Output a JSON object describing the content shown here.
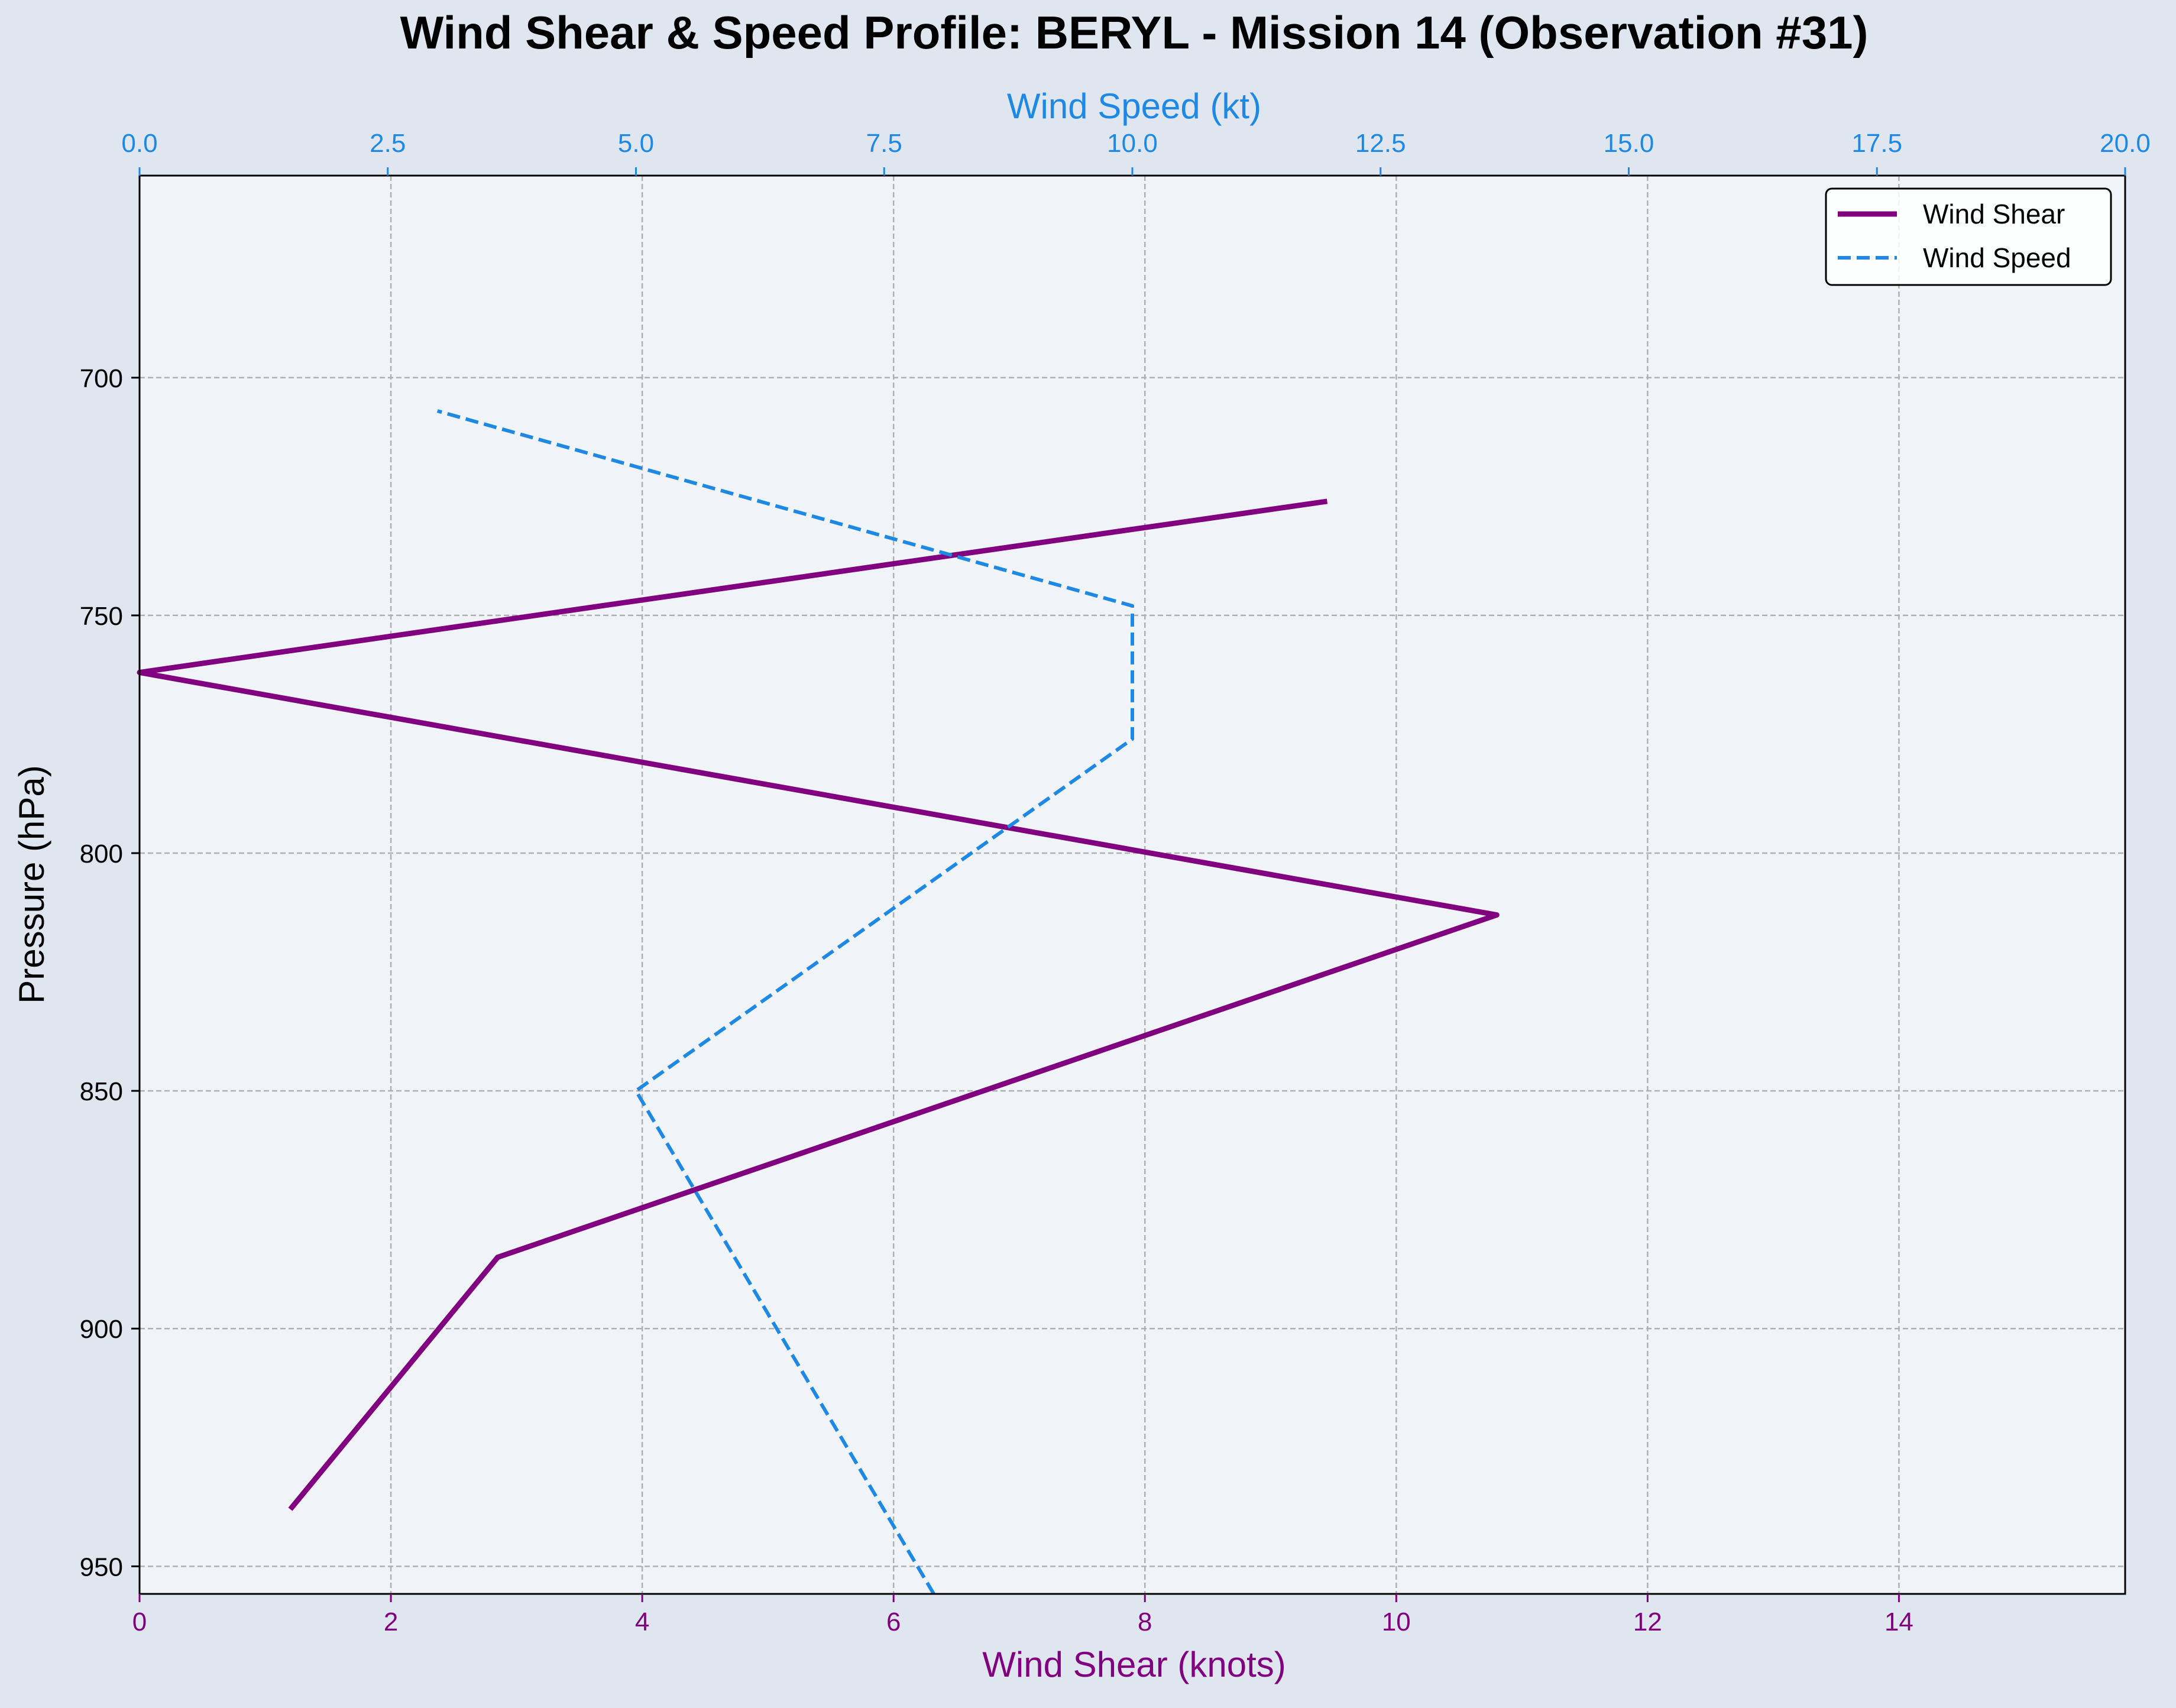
{
  "chart_data": {
    "type": "line",
    "title": "Wind Shear & Speed Profile: BERYL - Mission 14 (Observation #31)",
    "ylabel": "Pressure (hPa)",
    "xlabel_bottom": "Wind Shear (knots)",
    "xlabel_top": "Wind Speed (kt)",
    "y_inverted": true,
    "ylim": [
      955.8,
      657.5
    ],
    "yticks": [
      700,
      750,
      800,
      850,
      900,
      950
    ],
    "xlim_bottom": [
      0,
      15.8
    ],
    "xticks_bottom": [
      0,
      2,
      4,
      6,
      8,
      10,
      12,
      14
    ],
    "xlim_top": [
      0,
      20
    ],
    "xticks_top": [
      "0.0",
      "2.5",
      "5.0",
      "7.5",
      "10.0",
      "12.5",
      "15.0",
      "17.5",
      "20.0"
    ],
    "grid": true,
    "legend_position": "top-right",
    "colors": {
      "shear": "#800080",
      "speed": "#1e88e5",
      "plot_bg": "#f0f4f9",
      "figure_bg": "#e0e6ef"
    },
    "series": [
      {
        "name": "Wind Shear",
        "axis": "bottom",
        "style": "solid",
        "color": "#800080",
        "points": [
          {
            "x": 1.2,
            "y": 938
          },
          {
            "x": 2.85,
            "y": 885
          },
          {
            "x": 10.8,
            "y": 813
          },
          {
            "x": 0.0,
            "y": 762
          },
          {
            "x": 9.45,
            "y": 726
          }
        ]
      },
      {
        "name": "Wind Speed",
        "axis": "top",
        "style": "dashed",
        "color": "#1e88e5",
        "points": [
          {
            "x": 8.0,
            "y": 955.8
          },
          {
            "x": 5.0,
            "y": 850
          },
          {
            "x": 10.0,
            "y": 776
          },
          {
            "x": 10.0,
            "y": 748
          },
          {
            "x": 3.0,
            "y": 707
          }
        ]
      }
    ]
  }
}
